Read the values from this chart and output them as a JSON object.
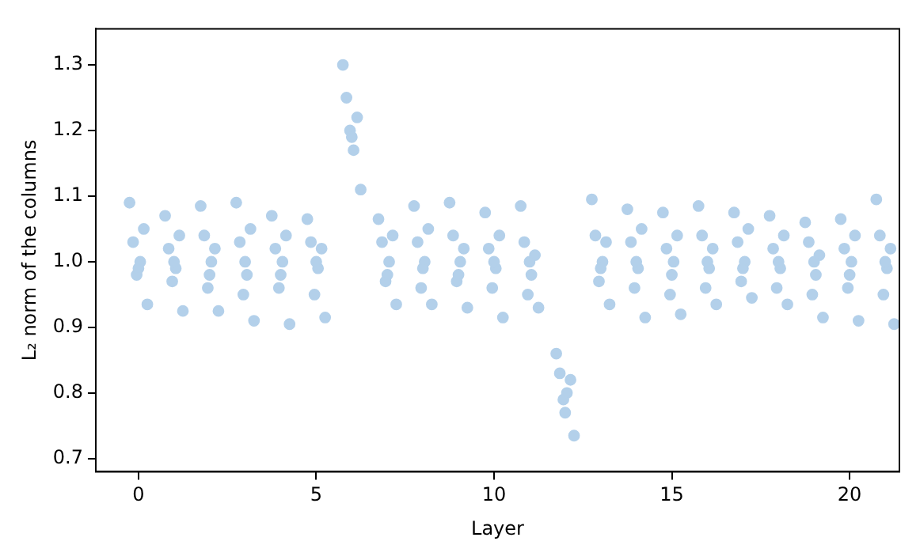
{
  "chart_data": {
    "type": "scatter",
    "xlabel": "Layer",
    "ylabel": "L₂ norm of the columns",
    "color": "#b3d0ea",
    "marker": "circle",
    "grid": false,
    "legend": false,
    "xlim": [
      -1.2,
      21.4
    ],
    "xticks": [
      0,
      5,
      10,
      15,
      20
    ],
    "ylim": [
      0.68,
      1.355
    ],
    "yticks": [
      {
        "value": 0.7,
        "label": "0.7"
      },
      {
        "value": 0.8,
        "label": "0.8"
      },
      {
        "value": 0.9,
        "label": "0.9"
      },
      {
        "value": 1.0,
        "label": "1.0"
      },
      {
        "value": 1.1,
        "label": "1.1"
      },
      {
        "value": 1.2,
        "label": "1.2"
      },
      {
        "value": 1.3,
        "label": "1.3"
      }
    ],
    "x": [
      -0.25,
      -0.15,
      -0.05,
      0.05,
      0.15,
      0.25,
      0,
      0.75,
      0.85,
      0.95,
      1.05,
      1.15,
      1.25,
      1,
      1.75,
      1.85,
      1.95,
      2.05,
      2.15,
      2.25,
      2,
      2.75,
      2.85,
      2.95,
      3.05,
      3.15,
      3.25,
      3,
      3.75,
      3.85,
      3.95,
      4.05,
      4.15,
      4.25,
      4,
      4.75,
      4.85,
      4.95,
      5.05,
      5.15,
      5.25,
      5,
      5.75,
      5.85,
      5.95,
      6.05,
      6.15,
      6.25,
      6,
      6.75,
      6.85,
      6.95,
      7.05,
      7.15,
      7.25,
      7,
      7.75,
      7.85,
      7.95,
      8.05,
      8.15,
      8.25,
      8,
      8.75,
      8.85,
      8.95,
      9.05,
      9.15,
      9.25,
      9,
      9.75,
      9.85,
      9.95,
      10.05,
      10.15,
      10.25,
      10,
      10.75,
      10.85,
      10.95,
      11.05,
      11.15,
      11.25,
      11,
      11.75,
      11.85,
      11.95,
      12.05,
      12.15,
      12.25,
      12,
      12.75,
      12.85,
      12.95,
      13.05,
      13.15,
      13.25,
      13,
      13.75,
      13.85,
      13.95,
      14.05,
      14.15,
      14.25,
      14,
      14.75,
      14.85,
      14.95,
      15.05,
      15.15,
      15.25,
      15,
      15.75,
      15.85,
      15.95,
      16.05,
      16.15,
      16.25,
      16,
      16.75,
      16.85,
      16.95,
      17.05,
      17.15,
      17.25,
      17,
      17.75,
      17.85,
      17.95,
      18.05,
      18.15,
      18.25,
      18,
      18.75,
      18.85,
      18.95,
      19.05,
      19.15,
      19.25,
      19,
      19.75,
      19.85,
      19.95,
      20.05,
      20.15,
      20.25,
      20,
      20.75,
      20.85,
      20.95,
      21.05,
      21.15,
      21.25,
      21
    ],
    "values": [
      1.09,
      1.03,
      0.98,
      1.0,
      1.05,
      0.935,
      0.99,
      1.07,
      1.02,
      0.97,
      0.99,
      1.04,
      0.925,
      1.0,
      1.085,
      1.04,
      0.96,
      1.0,
      1.02,
      0.925,
      0.98,
      1.09,
      1.03,
      0.95,
      0.98,
      1.05,
      0.91,
      1.0,
      1.07,
      1.02,
      0.96,
      1.0,
      1.04,
      0.905,
      0.98,
      1.065,
      1.03,
      0.95,
      0.99,
      1.02,
      0.915,
      1.0,
      1.3,
      1.25,
      1.2,
      1.17,
      1.22,
      1.11,
      1.19,
      1.065,
      1.03,
      0.97,
      1.0,
      1.04,
      0.935,
      0.98,
      1.085,
      1.03,
      0.96,
      1.0,
      1.05,
      0.935,
      0.99,
      1.09,
      1.04,
      0.97,
      1.0,
      1.02,
      0.93,
      0.98,
      1.075,
      1.02,
      0.96,
      0.99,
      1.04,
      0.915,
      1.0,
      1.085,
      1.03,
      0.95,
      0.98,
      1.01,
      0.93,
      1.0,
      0.86,
      0.83,
      0.79,
      0.8,
      0.82,
      0.735,
      0.77,
      1.095,
      1.04,
      0.97,
      1.0,
      1.03,
      0.935,
      0.99,
      1.08,
      1.03,
      0.96,
      0.99,
      1.05,
      0.915,
      1.0,
      1.075,
      1.02,
      0.95,
      1.0,
      1.04,
      0.92,
      0.98,
      1.085,
      1.04,
      0.96,
      0.99,
      1.02,
      0.935,
      1.0,
      1.075,
      1.03,
      0.97,
      1.0,
      1.05,
      0.945,
      0.99,
      1.07,
      1.02,
      0.96,
      0.99,
      1.04,
      0.935,
      1.0,
      1.06,
      1.03,
      0.95,
      0.98,
      1.01,
      0.915,
      1.0,
      1.065,
      1.02,
      0.96,
      1.0,
      1.04,
      0.91,
      0.98,
      1.095,
      1.04,
      0.95,
      0.99,
      1.02,
      0.905,
      1.0
    ]
  }
}
